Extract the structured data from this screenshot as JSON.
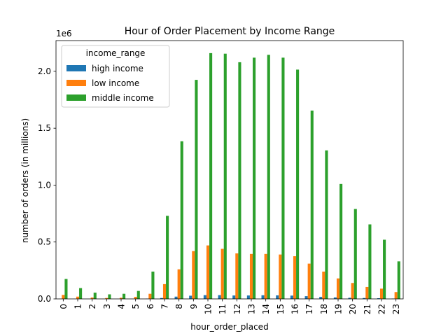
{
  "chart_data": {
    "type": "bar",
    "title": "Hour of Order Placement by Income Range",
    "xlabel": "hour_order_placed",
    "ylabel": "number of orders (in millions)",
    "y_offset_text": "1e6",
    "ylim": [
      0,
      2270000
    ],
    "yticks": [
      0,
      500000,
      1000000,
      1500000,
      2000000
    ],
    "ytick_labels": [
      "0.0",
      "0.5",
      "1.0",
      "1.5",
      "2.0"
    ],
    "categories": [
      "0",
      "1",
      "2",
      "3",
      "4",
      "5",
      "6",
      "7",
      "8",
      "9",
      "10",
      "11",
      "12",
      "13",
      "14",
      "15",
      "16",
      "17",
      "18",
      "19",
      "20",
      "21",
      "22",
      "23"
    ],
    "legend": {
      "title": "income_range",
      "placement": "top-left"
    },
    "series": [
      {
        "name": "high income",
        "color": "#1f77b4",
        "values": [
          1000,
          500,
          300,
          200,
          300,
          500,
          2000,
          8000,
          20000,
          28000,
          33000,
          33000,
          30000,
          30000,
          32000,
          31000,
          29000,
          24000,
          18000,
          13000,
          10000,
          8000,
          6000,
          3000
        ]
      },
      {
        "name": "low income",
        "color": "#ff7f0e",
        "values": [
          35000,
          20000,
          12000,
          8000,
          10000,
          18000,
          45000,
          130000,
          260000,
          420000,
          470000,
          440000,
          400000,
          395000,
          395000,
          390000,
          375000,
          310000,
          240000,
          180000,
          140000,
          105000,
          90000,
          60000
        ]
      },
      {
        "name": "middle income",
        "color": "#2ca02c",
        "values": [
          175000,
          95000,
          55000,
          40000,
          45000,
          70000,
          240000,
          730000,
          1385000,
          1925000,
          2160000,
          2155000,
          2080000,
          2120000,
          2145000,
          2120000,
          2015000,
          1655000,
          1305000,
          1010000,
          790000,
          655000,
          520000,
          330000
        ]
      }
    ],
    "grid": false
  }
}
